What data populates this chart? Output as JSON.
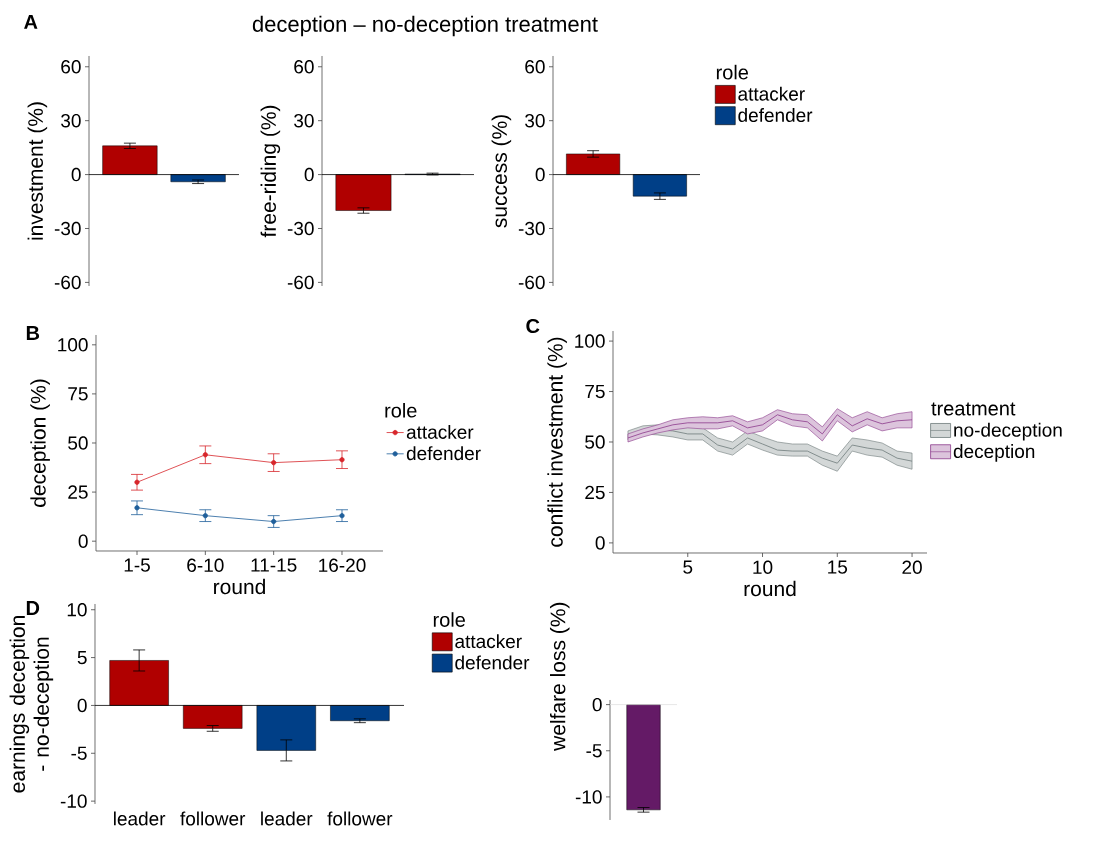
{
  "chart_data": [
    {
      "type": "other",
      "title": "deception – no-deception treatment"
    },
    {
      "type": "bar",
      "annotations": [
        "A"
      ],
      "ylabel": "investment (%)",
      "categories": [
        null,
        null
      ],
      "values": [
        16,
        -4
      ],
      "colors": [
        "#b00000",
        "#003f87"
      ],
      "errors": [
        1.5,
        1
      ],
      "ylim": [
        -62,
        66
      ],
      "yticks": [
        -60,
        -30,
        0,
        30,
        60
      ],
      "ref_lines": [
        {
          "axis": "y",
          "value": 0,
          "color": "#000000"
        }
      ]
    },
    {
      "type": "bar",
      "ylabel": "free-riding (%)",
      "categories": [
        null,
        null
      ],
      "values": [
        -20,
        0.3
      ],
      "colors": [
        "#b00000",
        "#003f87"
      ],
      "errors": [
        1.5,
        0.5
      ],
      "ylim": [
        -62,
        66
      ],
      "yticks": [
        -60,
        -30,
        0,
        30,
        60
      ],
      "ref_lines": [
        {
          "axis": "y",
          "value": 0,
          "color": "#000000"
        }
      ]
    },
    {
      "type": "bar",
      "ylabel": "success (%)",
      "legend_title": "role",
      "legend": "top right",
      "categories": [
        null,
        null
      ],
      "series": [
        {
          "name": "attacker",
          "color": "#b00000",
          "values": [
            11.5,
            null
          ],
          "errors": [
            1.8,
            null
          ]
        },
        {
          "name": "defender",
          "color": "#003f87",
          "values": [
            null,
            -12
          ],
          "errors": [
            null,
            1.8
          ]
        }
      ],
      "ylim": [
        -62,
        66
      ],
      "yticks": [
        -60,
        -30,
        0,
        30,
        60
      ],
      "ref_lines": [
        {
          "axis": "y",
          "value": 0,
          "color": "#000000"
        }
      ]
    },
    {
      "type": "line",
      "annotations": [
        "B"
      ],
      "xlabel": "round",
      "ylabel": "deception (%)",
      "legend_title": "role",
      "legend": "right",
      "marker": "circle",
      "categories": [
        "1-5",
        "6-10",
        "11-15",
        "16-20"
      ],
      "series": [
        {
          "name": "attacker",
          "color": "#d7262b",
          "values": [
            30,
            44,
            40,
            41.5
          ],
          "errors": [
            4,
            4.5,
            4.5,
            4.5
          ]
        },
        {
          "name": "defender",
          "color": "#1f5f9b",
          "values": [
            17,
            13,
            10,
            13
          ],
          "errors": [
            3.5,
            3,
            3,
            3
          ]
        }
      ],
      "ylim": [
        -5,
        105
      ],
      "yticks": [
        0,
        25,
        50,
        75,
        100
      ]
    },
    {
      "type": "line",
      "annotations": [
        "C"
      ],
      "xlabel": "round",
      "ylabel": "conflict investment (%)",
      "legend_title": "treatment",
      "legend": "right",
      "marker": "none",
      "x": [
        1,
        2,
        3,
        4,
        5,
        6,
        7,
        8,
        9,
        10,
        11,
        12,
        13,
        14,
        15,
        16,
        17,
        18,
        19,
        20
      ],
      "series": [
        {
          "name": "no-deception",
          "color": "#6e7b7b",
          "values": [
            53,
            56,
            56,
            55.5,
            54,
            54,
            48.5,
            46.5,
            52,
            49,
            46,
            45.5,
            45.5,
            42,
            39.5,
            48.5,
            47,
            46,
            42,
            40.5
          ],
          "lower": [
            51,
            54,
            53.5,
            52.5,
            51,
            51,
            45.5,
            43.5,
            49,
            46,
            43.5,
            43,
            43,
            38.5,
            35.5,
            45.5,
            43.5,
            42.5,
            38.5,
            36.5
          ],
          "upper": [
            55.5,
            58,
            58.5,
            58.5,
            57.5,
            57,
            52,
            50,
            55.5,
            52.5,
            50,
            49,
            49,
            45.5,
            43,
            52,
            51,
            49.5,
            45.5,
            44.5
          ]
        },
        {
          "name": "deception",
          "color": "#8b3a8b",
          "values": [
            52,
            54.5,
            56.5,
            58.5,
            59.5,
            59.5,
            59.5,
            60.5,
            57,
            58.5,
            63.5,
            61,
            60,
            54,
            63.5,
            58,
            61.5,
            59,
            60.5,
            61
          ],
          "lower": [
            50,
            52.5,
            54.5,
            56,
            57,
            56.5,
            56.5,
            58,
            54,
            55.5,
            61,
            58,
            57,
            50.5,
            60.5,
            55,
            58.5,
            55.5,
            57,
            57
          ],
          "upper": [
            54,
            56.5,
            58.5,
            61,
            62,
            62.5,
            62,
            63,
            60,
            62,
            66,
            64,
            63.5,
            57.5,
            66.5,
            62,
            65,
            62,
            64,
            65
          ]
        }
      ],
      "xlim": [
        0,
        21
      ],
      "xticks": [
        5,
        10,
        15,
        20
      ],
      "ylim": [
        -5,
        105
      ],
      "yticks": [
        0,
        25,
        50,
        75,
        100
      ]
    },
    {
      "type": "bar",
      "annotations": [
        "D"
      ],
      "ylabel": "earnings deception - no-deception",
      "legend_title": "role",
      "legend": "top right",
      "categories": [
        "leader",
        "follower",
        "leader",
        "follower"
      ],
      "series": [
        {
          "name": "attacker",
          "color": "#b00000",
          "values": [
            4.7,
            -2.4,
            null,
            null
          ],
          "errors": [
            1.1,
            0.3,
            null,
            null
          ]
        },
        {
          "name": "defender",
          "color": "#003f87",
          "values": [
            null,
            null,
            -4.7,
            -1.6
          ],
          "errors": [
            null,
            null,
            1.1,
            0.2
          ]
        }
      ],
      "ylim": [
        -10.3,
        10.6
      ],
      "yticks": [
        -10,
        -5,
        0,
        5,
        10
      ],
      "ref_lines": [
        {
          "axis": "y",
          "value": 0,
          "color": "#000000"
        }
      ]
    },
    {
      "type": "bar",
      "ylabel": "welfare loss (%)",
      "categories": [
        null
      ],
      "values": [
        -11.4
      ],
      "colors": [
        "#641a66"
      ],
      "errors": [
        0.25
      ],
      "ylim": [
        -12.5,
        0.5
      ],
      "yticks": [
        -10,
        -5,
        0
      ],
      "ref_lines": [
        {
          "axis": "y",
          "value": 0,
          "color": "#e0e0e0"
        }
      ]
    }
  ]
}
